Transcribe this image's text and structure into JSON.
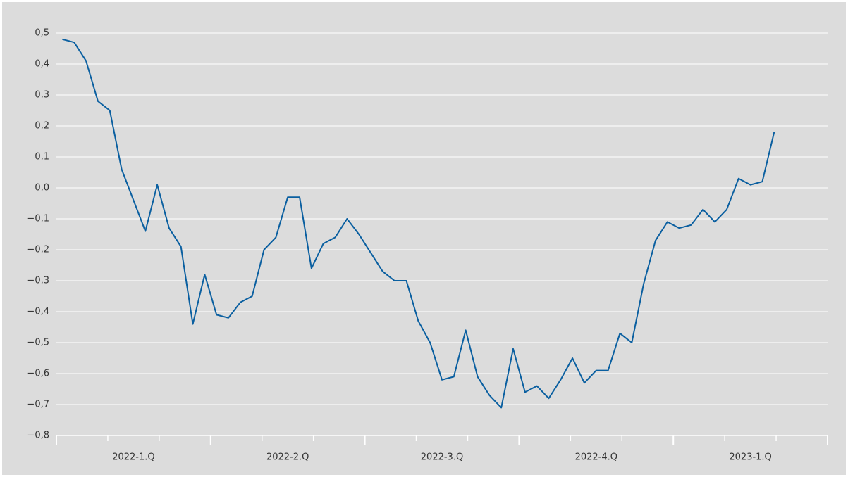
{
  "chart_data": {
    "type": "line",
    "categories": [
      null,
      null,
      null,
      null,
      null,
      null,
      "2022-1.Q",
      null,
      null,
      null,
      null,
      null,
      null,
      null,
      null,
      null,
      null,
      null,
      null,
      "2022-2.Q",
      null,
      null,
      null,
      null,
      null,
      null,
      null,
      null,
      null,
      null,
      null,
      null,
      "2022-3.Q",
      null,
      null,
      null,
      null,
      null,
      null,
      null,
      null,
      null,
      null,
      null,
      null,
      "2022-4.Q",
      null,
      null,
      null,
      null,
      null,
      null,
      null,
      null,
      null,
      null,
      null,
      null,
      "2023-1.Q",
      null,
      null,
      null,
      null,
      null,
      null
    ],
    "series": [
      {
        "color": "#0a5fa0",
        "values": [
          0.48,
          0.47,
          0.41,
          0.28,
          0.25,
          0.06,
          -0.04,
          -0.14,
          0.01,
          -0.13,
          -0.19,
          -0.44,
          -0.28,
          -0.41,
          -0.42,
          -0.37,
          -0.35,
          -0.2,
          -0.16,
          -0.03,
          -0.03,
          -0.26,
          -0.18,
          -0.16,
          -0.1,
          -0.15,
          -0.21,
          -0.27,
          -0.3,
          -0.3,
          -0.43,
          -0.5,
          -0.62,
          -0.61,
          -0.46,
          -0.61,
          -0.67,
          -0.71,
          -0.52,
          -0.66,
          -0.64,
          -0.68,
          -0.62,
          -0.55,
          -0.63,
          -0.59,
          -0.59,
          -0.47,
          -0.5,
          -0.31,
          -0.17,
          -0.11,
          -0.13,
          -0.12,
          -0.07,
          -0.11,
          -0.07,
          0.03,
          0.01,
          0.02,
          0.18,
          null,
          null,
          null,
          null
        ]
      }
    ],
    "ylim": [
      -0.8,
      0.5
    ],
    "yticks": [
      {
        "value": 0.5,
        "label": "0,5"
      },
      {
        "value": 0.4,
        "label": "0,4"
      },
      {
        "value": 0.3,
        "label": "0,3"
      },
      {
        "value": 0.2,
        "label": "0,2"
      },
      {
        "value": 0.1,
        "label": "0,1"
      },
      {
        "value": 0,
        "label": "0,0"
      },
      {
        "value": -0.1,
        "label": "−0,1"
      },
      {
        "value": -0.2,
        "label": "−0,2"
      },
      {
        "value": -0.3,
        "label": "−0,3"
      },
      {
        "value": -0.4,
        "label": "−0,4"
      },
      {
        "value": -0.5,
        "label": "−0,5"
      },
      {
        "value": -0.6,
        "label": "−0,6"
      },
      {
        "value": -0.7,
        "label": "−0,7"
      },
      {
        "value": -0.8,
        "label": "−0,8"
      }
    ],
    "grid": true
  }
}
